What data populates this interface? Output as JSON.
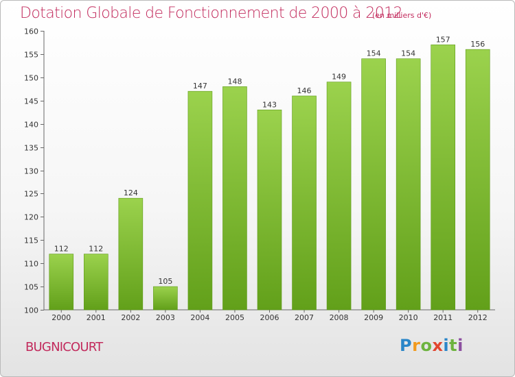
{
  "header": {
    "title": "Dotation Globale de Fonctionnement de 2000 à 2012",
    "unit_note": "(en milliers d'€)"
  },
  "footer": {
    "commune": "BUGNICOURT",
    "logo_letters": [
      "P",
      "r",
      "o",
      "x",
      "i",
      "t",
      "i"
    ]
  },
  "colors": {
    "title": "#c22a5c",
    "bar_top": "#9bd24d",
    "bar_bottom": "#62a01a",
    "bar_edge": "#5e9a18"
  },
  "chart_data": {
    "type": "bar",
    "title": "Dotation Globale de Fonctionnement de 2000 à 2012",
    "subtitle": "(en milliers d'€)",
    "categories": [
      "2000",
      "2001",
      "2002",
      "2003",
      "2004",
      "2005",
      "2006",
      "2007",
      "2008",
      "2009",
      "2010",
      "2011",
      "2012"
    ],
    "values": [
      112,
      112,
      124,
      105,
      147,
      148,
      143,
      146,
      149,
      154,
      154,
      157,
      156
    ],
    "data_labels": [
      "112",
      "112",
      "124",
      "105",
      "147",
      "148",
      "143",
      "146",
      "149",
      "154",
      "154",
      "157",
      "156"
    ],
    "xlabel": "",
    "ylabel": "",
    "ylim": [
      100,
      160
    ],
    "yticks": [
      100,
      105,
      110,
      115,
      120,
      125,
      130,
      135,
      140,
      145,
      150,
      155,
      160
    ],
    "grid": false,
    "legend": "none"
  }
}
